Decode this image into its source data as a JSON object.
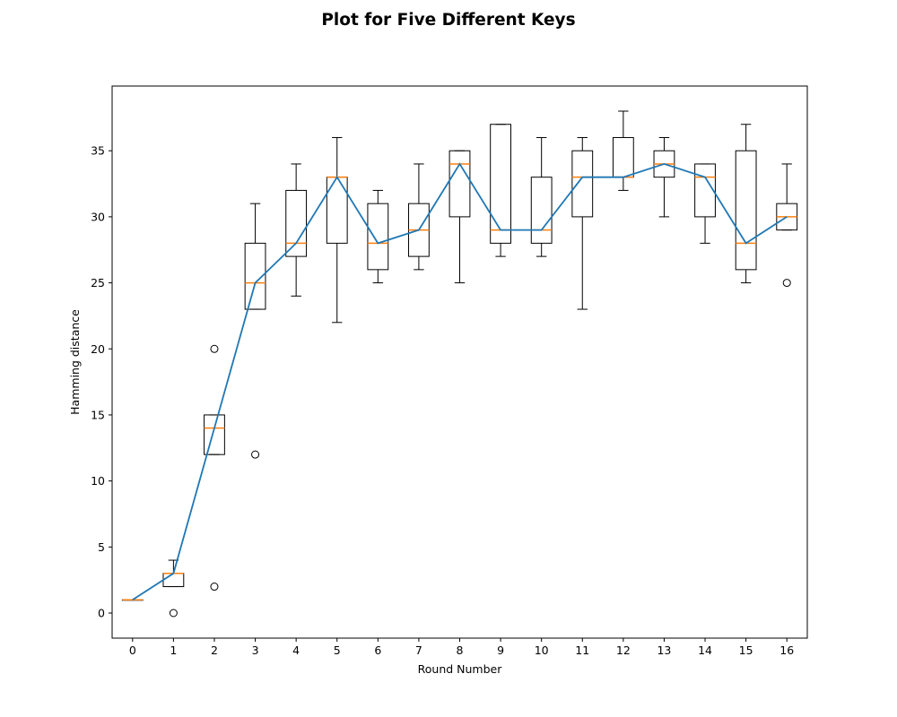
{
  "chart_data": {
    "type": "box",
    "title": "Plot for Five Different Keys",
    "xlabel": "Round Number",
    "ylabel": "Hamming distance",
    "ylim": [
      -1.9,
      39.9
    ],
    "yticks": [
      0,
      5,
      10,
      15,
      20,
      25,
      30,
      35
    ],
    "grid": false,
    "legend": "none",
    "categories": [
      "0",
      "1",
      "2",
      "3",
      "4",
      "5",
      "6",
      "7",
      "8",
      "9",
      "10",
      "11",
      "12",
      "13",
      "14",
      "15",
      "16"
    ],
    "boxes": [
      {
        "x": 0,
        "whisker_low": 1,
        "q1": 1,
        "median": 1,
        "q3": 1,
        "whisker_high": 1,
        "outliers": []
      },
      {
        "x": 1,
        "whisker_low": 2,
        "q1": 2,
        "median": 3,
        "q3": 3,
        "whisker_high": 4,
        "outliers": [
          0
        ]
      },
      {
        "x": 2,
        "whisker_low": 12,
        "q1": 12,
        "median": 14,
        "q3": 15,
        "whisker_high": 15,
        "outliers": [
          20,
          2
        ]
      },
      {
        "x": 3,
        "whisker_low": 23,
        "q1": 23,
        "median": 25,
        "q3": 28,
        "whisker_high": 31,
        "outliers": [
          12
        ]
      },
      {
        "x": 4,
        "whisker_low": 24,
        "q1": 27,
        "median": 28,
        "q3": 32,
        "whisker_high": 34,
        "outliers": []
      },
      {
        "x": 5,
        "whisker_low": 22,
        "q1": 28,
        "median": 33,
        "q3": 33,
        "whisker_high": 36,
        "outliers": []
      },
      {
        "x": 6,
        "whisker_low": 25,
        "q1": 26,
        "median": 28,
        "q3": 31,
        "whisker_high": 32,
        "outliers": []
      },
      {
        "x": 7,
        "whisker_low": 26,
        "q1": 27,
        "median": 29,
        "q3": 31,
        "whisker_high": 34,
        "outliers": []
      },
      {
        "x": 8,
        "whisker_low": 25,
        "q1": 30,
        "median": 34,
        "q3": 35,
        "whisker_high": 35,
        "outliers": []
      },
      {
        "x": 9,
        "whisker_low": 27,
        "q1": 28,
        "median": 29,
        "q3": 37,
        "whisker_high": 37,
        "outliers": []
      },
      {
        "x": 10,
        "whisker_low": 27,
        "q1": 28,
        "median": 29,
        "q3": 33,
        "whisker_high": 36,
        "outliers": []
      },
      {
        "x": 11,
        "whisker_low": 23,
        "q1": 30,
        "median": 33,
        "q3": 35,
        "whisker_high": 36,
        "outliers": []
      },
      {
        "x": 12,
        "whisker_low": 32,
        "q1": 33,
        "median": 33,
        "q3": 36,
        "whisker_high": 38,
        "outliers": []
      },
      {
        "x": 13,
        "whisker_low": 30,
        "q1": 33,
        "median": 34,
        "q3": 35,
        "whisker_high": 36,
        "outliers": []
      },
      {
        "x": 14,
        "whisker_low": 28,
        "q1": 30,
        "median": 33,
        "q3": 34,
        "whisker_high": 34,
        "outliers": []
      },
      {
        "x": 15,
        "whisker_low": 25,
        "q1": 26,
        "median": 28,
        "q3": 35,
        "whisker_high": 37,
        "outliers": []
      },
      {
        "x": 16,
        "whisker_low": 29,
        "q1": 29,
        "median": 30,
        "q3": 31,
        "whisker_high": 34,
        "outliers": [
          25
        ]
      }
    ],
    "series": [
      {
        "type": "line",
        "x": [
          0,
          1,
          2,
          3,
          4,
          5,
          6,
          7,
          8,
          9,
          10,
          11,
          12,
          13,
          14,
          15,
          16
        ],
        "values": [
          1,
          3,
          14,
          25,
          28,
          33,
          28,
          29,
          34,
          29,
          29,
          33,
          33,
          34,
          33,
          28,
          30
        ]
      }
    ],
    "colors": {
      "box": "#000000",
      "median": "#ff7f0e",
      "line": "#1f77b4"
    }
  }
}
